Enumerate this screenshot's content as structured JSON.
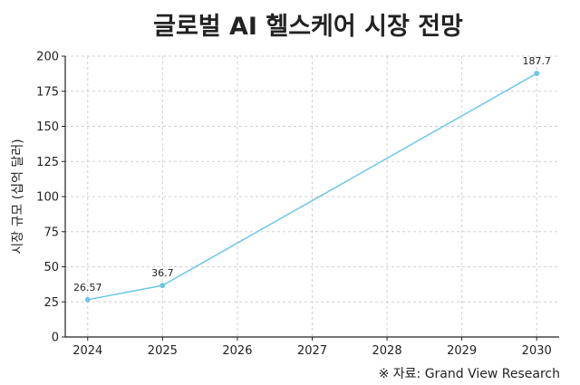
{
  "chart_data": {
    "type": "line",
    "title": "글로벌 AI 헬스케어 시장 전망",
    "xlabel": "",
    "ylabel": "시장 규모 (십억 달러)",
    "source": "※ 자료: Grand View Research",
    "x": [
      2024,
      2025,
      2030
    ],
    "series": [
      {
        "name": "시장 규모",
        "values": [
          26.57,
          36.7,
          187.7
        ],
        "labels": [
          "26.57",
          "36.7",
          "187.7"
        ],
        "color": "#6ec6e8"
      }
    ],
    "xticks": [
      "2024",
      "2025",
      "2026",
      "2027",
      "2028",
      "2029",
      "2030"
    ],
    "yticks": [
      "0",
      "25",
      "50",
      "75",
      "100",
      "125",
      "150",
      "175",
      "200"
    ],
    "xlim": [
      2023.7,
      2030.3
    ],
    "ylim": [
      0,
      200
    ],
    "grid": true
  }
}
